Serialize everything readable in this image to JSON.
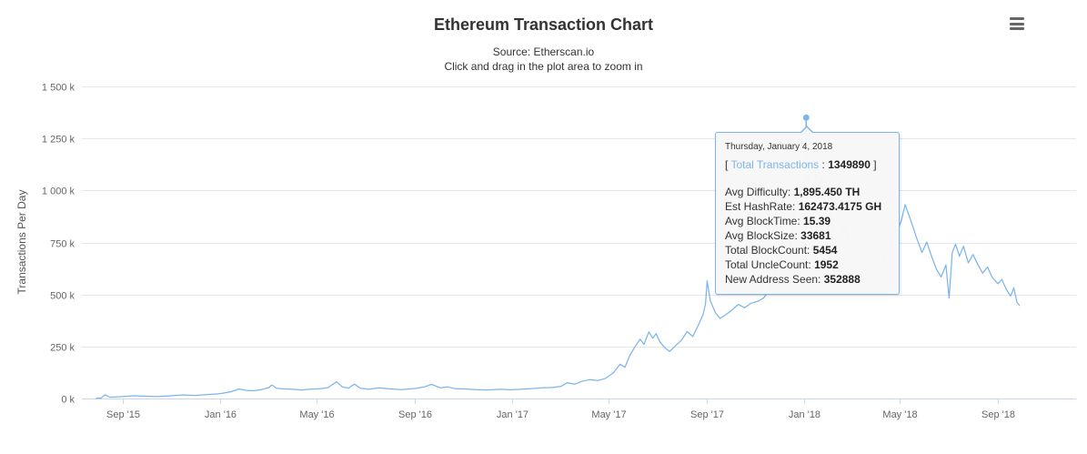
{
  "header": {
    "title": "Ethereum Transaction Chart",
    "subtitle_source": "Source: Etherscan.io",
    "subtitle_hint": "Click and drag in the plot area to zoom in",
    "menu_button": {
      "icon": "hamburger-icon"
    }
  },
  "colors": {
    "line": "#7cb5ec",
    "grid": "#e6e6e6",
    "axis_line": "#ccd6eb",
    "axis_label": "#666666",
    "title_text": "#333333",
    "tooltip_border": "#7cb5ec",
    "tooltip_bg": "#f7f7f7"
  },
  "tooltip": {
    "date": "Thursday, January 4, 2018",
    "bracket_open": "[ ",
    "series_label": "Total Transactions",
    "separator": " : ",
    "series_value": "1349890",
    "bracket_close": " ]",
    "rows": [
      {
        "label": "Avg Difficulty:",
        "value": "1,895.450 TH"
      },
      {
        "label": "Est HashRate:",
        "value": "162473.4175 GH"
      },
      {
        "label": "Avg BlockTime:",
        "value": "15.39"
      },
      {
        "label": "Avg BlockSize:",
        "value": "33681"
      },
      {
        "label": "Total BlockCount:",
        "value": "5454"
      },
      {
        "label": "Total UncleCount:",
        "value": "1952"
      },
      {
        "label": "New Address Seen:",
        "value": "352888"
      }
    ]
  },
  "chart_data": {
    "type": "line",
    "title": "Ethereum Transaction Chart",
    "xlabel": "",
    "ylabel": "Transactions Per Day",
    "grid": true,
    "legend": false,
    "ylim": [
      0,
      1500000
    ],
    "x_range": [
      "2015-07-12",
      "2018-12-08"
    ],
    "y_ticks": [
      {
        "value": 0,
        "label": "0 k"
      },
      {
        "value": 250000,
        "label": "250 k"
      },
      {
        "value": 500000,
        "label": "500 k"
      },
      {
        "value": 750000,
        "label": "750 k"
      },
      {
        "value": 1000000,
        "label": "1 000 k"
      },
      {
        "value": 1250000,
        "label": "1 250 k"
      },
      {
        "value": 1500000,
        "label": "1 500 k"
      }
    ],
    "x_ticks": [
      {
        "date": "2015-09-01",
        "label": "Sep '15"
      },
      {
        "date": "2016-01-01",
        "label": "Jan '16"
      },
      {
        "date": "2016-05-01",
        "label": "May '16"
      },
      {
        "date": "2016-09-01",
        "label": "Sep '16"
      },
      {
        "date": "2017-01-01",
        "label": "Jan '17"
      },
      {
        "date": "2017-05-01",
        "label": "May '17"
      },
      {
        "date": "2017-09-01",
        "label": "Sep '17"
      },
      {
        "date": "2018-01-01",
        "label": "Jan '18"
      },
      {
        "date": "2018-05-01",
        "label": "May '18"
      },
      {
        "date": "2018-09-01",
        "label": "Sep '18"
      }
    ],
    "highlight_point": {
      "date": "2018-01-04",
      "value": 1349890
    },
    "series": [
      {
        "name": "Total Transactions",
        "points": [
          [
            "2015-07-30",
            500
          ],
          [
            "2015-08-05",
            2000
          ],
          [
            "2015-08-10",
            18000
          ],
          [
            "2015-08-16",
            6000
          ],
          [
            "2015-09-01",
            9000
          ],
          [
            "2015-09-15",
            13000
          ],
          [
            "2015-10-01",
            11000
          ],
          [
            "2015-10-15",
            9000
          ],
          [
            "2015-11-01",
            13000
          ],
          [
            "2015-11-15",
            17000
          ],
          [
            "2015-12-01",
            15000
          ],
          [
            "2015-12-15",
            19000
          ],
          [
            "2015-12-28",
            22000
          ],
          [
            "2016-01-05",
            26000
          ],
          [
            "2016-01-15",
            33000
          ],
          [
            "2016-01-25",
            46000
          ],
          [
            "2016-02-03",
            39000
          ],
          [
            "2016-02-12",
            37000
          ],
          [
            "2016-02-22",
            43000
          ],
          [
            "2016-03-02",
            52000
          ],
          [
            "2016-03-06",
            65000
          ],
          [
            "2016-03-12",
            49000
          ],
          [
            "2016-03-22",
            46000
          ],
          [
            "2016-04-01",
            44000
          ],
          [
            "2016-04-12",
            41000
          ],
          [
            "2016-04-24",
            45000
          ],
          [
            "2016-05-05",
            47000
          ],
          [
            "2016-05-15",
            52000
          ],
          [
            "2016-05-26",
            80000
          ],
          [
            "2016-06-02",
            56000
          ],
          [
            "2016-06-10",
            50000
          ],
          [
            "2016-06-17",
            69000
          ],
          [
            "2016-06-25",
            49000
          ],
          [
            "2016-07-05",
            44000
          ],
          [
            "2016-07-18",
            51000
          ],
          [
            "2016-08-01",
            46000
          ],
          [
            "2016-08-15",
            43000
          ],
          [
            "2016-09-01",
            48000
          ],
          [
            "2016-09-13",
            56000
          ],
          [
            "2016-09-22",
            68000
          ],
          [
            "2016-10-03",
            51000
          ],
          [
            "2016-10-12",
            56000
          ],
          [
            "2016-10-22",
            47000
          ],
          [
            "2016-11-03",
            46000
          ],
          [
            "2016-11-16",
            43000
          ],
          [
            "2016-12-01",
            41000
          ],
          [
            "2016-12-16",
            44000
          ],
          [
            "2016-12-30",
            42000
          ],
          [
            "2017-01-10",
            44000
          ],
          [
            "2017-01-24",
            47000
          ],
          [
            "2017-02-07",
            51000
          ],
          [
            "2017-02-20",
            53000
          ],
          [
            "2017-03-03",
            58000
          ],
          [
            "2017-03-11",
            76000
          ],
          [
            "2017-03-20",
            69000
          ],
          [
            "2017-03-29",
            82000
          ],
          [
            "2017-04-08",
            91000
          ],
          [
            "2017-04-18",
            86000
          ],
          [
            "2017-04-28",
            97000
          ],
          [
            "2017-05-08",
            125000
          ],
          [
            "2017-05-16",
            165000
          ],
          [
            "2017-05-22",
            150000
          ],
          [
            "2017-05-28",
            205000
          ],
          [
            "2017-06-03",
            245000
          ],
          [
            "2017-06-10",
            285000
          ],
          [
            "2017-06-15",
            260000
          ],
          [
            "2017-06-21",
            320000
          ],
          [
            "2017-06-26",
            290000
          ],
          [
            "2017-06-30",
            312000
          ],
          [
            "2017-07-05",
            272000
          ],
          [
            "2017-07-11",
            243000
          ],
          [
            "2017-07-17",
            226000
          ],
          [
            "2017-07-24",
            252000
          ],
          [
            "2017-08-01",
            281000
          ],
          [
            "2017-08-08",
            322000
          ],
          [
            "2017-08-15",
            298000
          ],
          [
            "2017-08-22",
            352000
          ],
          [
            "2017-08-28",
            405000
          ],
          [
            "2017-08-31",
            455000
          ],
          [
            "2017-09-02",
            565000
          ],
          [
            "2017-09-06",
            470000
          ],
          [
            "2017-09-12",
            415000
          ],
          [
            "2017-09-18",
            385000
          ],
          [
            "2017-09-25",
            402000
          ],
          [
            "2017-10-03",
            425000
          ],
          [
            "2017-10-11",
            452000
          ],
          [
            "2017-10-19",
            436000
          ],
          [
            "2017-10-27",
            458000
          ],
          [
            "2017-11-05",
            468000
          ],
          [
            "2017-11-12",
            484000
          ],
          [
            "2017-11-19",
            522000
          ],
          [
            "2017-11-24",
            583000
          ],
          [
            "2017-11-29",
            652000
          ],
          [
            "2017-12-05",
            703000
          ],
          [
            "2017-12-12",
            782000
          ],
          [
            "2017-12-16",
            728000
          ],
          [
            "2017-12-20",
            902000
          ],
          [
            "2017-12-24",
            822000
          ],
          [
            "2017-12-28",
            858000
          ],
          [
            "2017-12-31",
            912000
          ],
          [
            "2018-01-02",
            1012000
          ],
          [
            "2018-01-04",
            1349890
          ],
          [
            "2018-01-06",
            1048000
          ],
          [
            "2018-01-10",
            1128000
          ],
          [
            "2018-01-14",
            1152000
          ],
          [
            "2018-01-18",
            982000
          ],
          [
            "2018-01-23",
            1056000
          ],
          [
            "2018-01-28",
            948000
          ],
          [
            "2018-02-02",
            898000
          ],
          [
            "2018-02-07",
            822000
          ],
          [
            "2018-02-13",
            752000
          ],
          [
            "2018-02-19",
            832000
          ],
          [
            "2018-02-25",
            784000
          ],
          [
            "2018-03-04",
            722000
          ],
          [
            "2018-03-11",
            684000
          ],
          [
            "2018-03-18",
            652000
          ],
          [
            "2018-03-25",
            618000
          ],
          [
            "2018-04-01",
            584000
          ],
          [
            "2018-04-08",
            648000
          ],
          [
            "2018-04-15",
            702000
          ],
          [
            "2018-04-22",
            754000
          ],
          [
            "2018-04-28",
            802000
          ],
          [
            "2018-05-03",
            852000
          ],
          [
            "2018-05-08",
            932000
          ],
          [
            "2018-05-13",
            878000
          ],
          [
            "2018-05-18",
            822000
          ],
          [
            "2018-05-23",
            764000
          ],
          [
            "2018-05-29",
            702000
          ],
          [
            "2018-06-04",
            752000
          ],
          [
            "2018-06-10",
            684000
          ],
          [
            "2018-06-16",
            622000
          ],
          [
            "2018-06-22",
            584000
          ],
          [
            "2018-06-28",
            642000
          ],
          [
            "2018-07-02",
            482000
          ],
          [
            "2018-07-06",
            702000
          ],
          [
            "2018-07-10",
            742000
          ],
          [
            "2018-07-15",
            684000
          ],
          [
            "2018-07-20",
            732000
          ],
          [
            "2018-07-26",
            652000
          ],
          [
            "2018-08-01",
            692000
          ],
          [
            "2018-08-07",
            644000
          ],
          [
            "2018-08-13",
            602000
          ],
          [
            "2018-08-19",
            632000
          ],
          [
            "2018-08-25",
            582000
          ],
          [
            "2018-09-01",
            552000
          ],
          [
            "2018-09-06",
            572000
          ],
          [
            "2018-09-12",
            522000
          ],
          [
            "2018-09-17",
            492000
          ],
          [
            "2018-09-21",
            532000
          ],
          [
            "2018-09-25",
            462000
          ],
          [
            "2018-09-28",
            448000
          ]
        ]
      }
    ]
  }
}
